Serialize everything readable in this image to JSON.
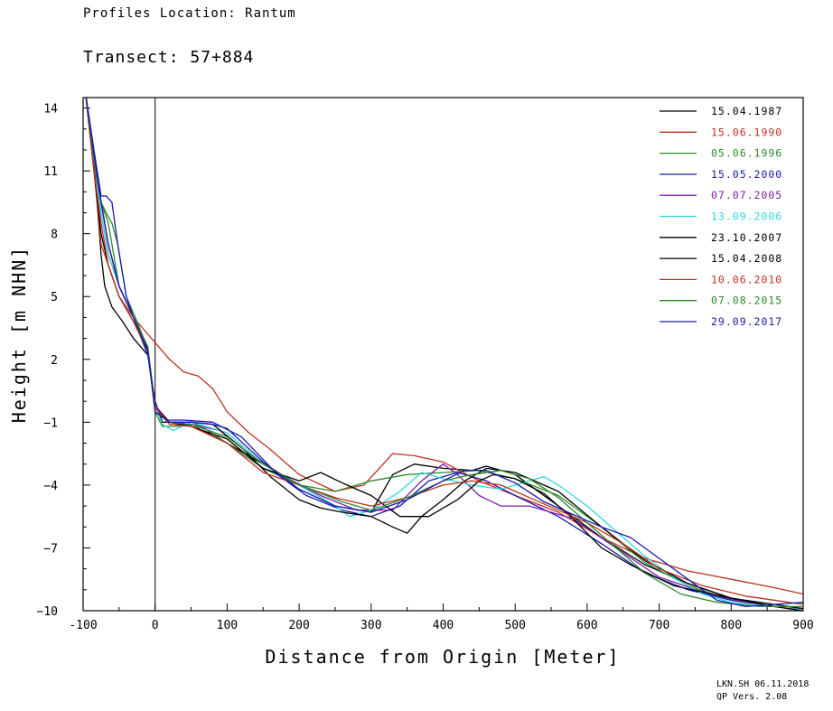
{
  "header": {
    "location": "Profiles Location: Rantum",
    "transect": "Transect: 57+884"
  },
  "footer": {
    "line1": "LKN.SH 06.11.2018",
    "line2": "QP Vers. 2.08"
  },
  "chart_data": {
    "type": "line",
    "xlabel": "Distance from Origin [Meter]",
    "ylabel": "Height [m NHN]",
    "xlim": [
      -100,
      900
    ],
    "ylim": [
      -10,
      14.5
    ],
    "xticks": [
      -100,
      0,
      100,
      200,
      300,
      400,
      500,
      600,
      700,
      800,
      900
    ],
    "yticks": [
      -10,
      -7,
      -4,
      -1,
      2,
      5,
      8,
      11,
      14
    ],
    "legend_position": "top-right",
    "grid": false,
    "series": [
      {
        "name": "15.04.1987",
        "color": "#000000",
        "x": [
          -97,
          -85,
          -75,
          -70,
          -60,
          -45,
          -30,
          -10,
          0,
          10,
          30,
          60,
          100,
          150,
          200,
          250,
          300,
          330,
          360,
          400,
          440,
          460,
          500,
          560,
          620,
          680,
          740,
          800,
          860,
          900
        ],
        "y": [
          14.8,
          11.5,
          7,
          5.5,
          4.5,
          3.8,
          3,
          2.2,
          0,
          -1,
          -1,
          -1.3,
          -2,
          -3,
          -4,
          -5,
          -5.3,
          -3.5,
          -3,
          -3.2,
          -3.3,
          -3.1,
          -3.5,
          -5,
          -6.5,
          -7.8,
          -8.7,
          -9.4,
          -9.8,
          -9.9
        ]
      },
      {
        "name": "15.06.1990",
        "color": "#c03020",
        "x": [
          -97,
          -85,
          -75,
          -65,
          -50,
          -30,
          -10,
          0,
          20,
          40,
          60,
          80,
          100,
          130,
          160,
          200,
          250,
          290,
          330,
          360,
          400,
          450,
          500,
          560,
          620,
          680,
          740,
          800,
          860,
          900
        ],
        "y": [
          14.8,
          11,
          7.5,
          6.5,
          5,
          4,
          3.2,
          2.8,
          2,
          1.4,
          1.2,
          0.6,
          -0.5,
          -1.5,
          -2.3,
          -3.5,
          -4.3,
          -4,
          -2.5,
          -2.6,
          -2.9,
          -3.8,
          -4.5,
          -5.3,
          -6.5,
          -7.5,
          -8.1,
          -8.5,
          -8.9,
          -9.2
        ]
      },
      {
        "name": "05.06.1996",
        "color": "#2a8a2a",
        "x": [
          -97,
          -85,
          -75,
          -68,
          -60,
          -52,
          -40,
          -25,
          -10,
          0,
          10,
          30,
          60,
          100,
          150,
          200,
          250,
          300,
          350,
          400,
          450,
          500,
          560,
          620,
          680,
          740,
          800,
          860,
          900
        ],
        "y": [
          14.8,
          11.5,
          9.5,
          9,
          8.5,
          7.5,
          5,
          3.8,
          2.5,
          -0.5,
          -1.2,
          -1.2,
          -1.1,
          -2,
          -3.2,
          -4,
          -4.3,
          -3.8,
          -3.5,
          -3.4,
          -3.3,
          -3.7,
          -4.5,
          -6,
          -7.7,
          -8.8,
          -9.5,
          -9.8,
          -9.9
        ]
      },
      {
        "name": "15.05.2000",
        "color": "#1a1ab0",
        "x": [
          -97,
          -85,
          -75,
          -68,
          -60,
          -52,
          -40,
          -25,
          -10,
          0,
          15,
          40,
          80,
          120,
          170,
          210,
          260,
          300,
          340,
          380,
          420,
          460,
          500,
          560,
          620,
          680,
          740,
          800,
          860,
          900
        ],
        "y": [
          14.8,
          12,
          9.8,
          9.8,
          9.5,
          7.5,
          5,
          3.5,
          2.2,
          -0.3,
          -0.9,
          -0.9,
          -1,
          -1.7,
          -3.5,
          -4.5,
          -5.2,
          -5.5,
          -5,
          -3.8,
          -3.4,
          -3.8,
          -4.5,
          -5.5,
          -6.8,
          -8.2,
          -9,
          -9.5,
          -9.8,
          -9.9
        ]
      },
      {
        "name": "07.07.2005",
        "color": "#8020b0",
        "x": [
          -97,
          -85,
          -75,
          -65,
          -50,
          -30,
          -10,
          0,
          20,
          50,
          90,
          130,
          180,
          230,
          280,
          330,
          370,
          400,
          420,
          450,
          480,
          520,
          580,
          640,
          700,
          760,
          820,
          880,
          900
        ],
        "y": [
          14.8,
          11.5,
          9,
          7,
          5.5,
          4,
          2.5,
          -0.2,
          -1,
          -1.1,
          -1.4,
          -2.5,
          -3.6,
          -4.5,
          -5.2,
          -5.2,
          -3.8,
          -3,
          -3.5,
          -4.5,
          -5,
          -5,
          -5.6,
          -7,
          -8.4,
          -9.1,
          -9.6,
          -9.9,
          -10
        ]
      },
      {
        "name": "13.09.2006",
        "color": "#30d8e0",
        "x": [
          -97,
          -85,
          -75,
          -65,
          -50,
          -30,
          -10,
          0,
          10,
          25,
          50,
          100,
          150,
          200,
          250,
          270,
          300,
          340,
          370,
          400,
          440,
          480,
          520,
          540,
          560,
          600,
          640,
          680,
          720,
          760,
          800,
          860,
          900
        ],
        "y": [
          14.8,
          11.5,
          9,
          7,
          5.5,
          4,
          2.5,
          -0.2,
          -1.1,
          -1.4,
          -1,
          -1.5,
          -3,
          -4,
          -5,
          -5.5,
          -5.2,
          -4.3,
          -3.4,
          -3.7,
          -4,
          -4.2,
          -3.8,
          -3.6,
          -4,
          -5,
          -6.2,
          -7.4,
          -8.4,
          -9.2,
          -9.6,
          -9.8,
          -9.9
        ]
      },
      {
        "name": "23.10.2007",
        "color": "#000000",
        "x": [
          -97,
          -85,
          -75,
          -65,
          -50,
          -30,
          -10,
          0,
          20,
          50,
          80,
          120,
          160,
          200,
          230,
          260,
          300,
          330,
          350,
          370,
          400,
          430,
          460,
          500,
          560,
          620,
          680,
          740,
          800,
          860,
          900
        ],
        "y": [
          14.8,
          11.5,
          9.5,
          7.5,
          5.5,
          4,
          2.5,
          -0.3,
          -1,
          -1,
          -1.1,
          -2.2,
          -3.6,
          -4.7,
          -5.1,
          -5.3,
          -5.5,
          -6,
          -6.3,
          -5.5,
          -4.7,
          -3.8,
          -3.2,
          -3.4,
          -4.3,
          -6,
          -7.6,
          -8.7,
          -9.4,
          -9.8,
          -10
        ]
      },
      {
        "name": "15.04.2008",
        "color": "#000000",
        "x": [
          -97,
          -85,
          -75,
          -65,
          -50,
          -30,
          -10,
          0,
          20,
          50,
          100,
          150,
          200,
          230,
          260,
          300,
          340,
          380,
          420,
          450,
          470,
          500,
          540,
          580,
          620,
          660,
          720,
          800,
          860,
          900
        ],
        "y": [
          14.8,
          11,
          8,
          6.5,
          5,
          3.8,
          2.4,
          -0.5,
          -1,
          -1.2,
          -1.8,
          -3.2,
          -3.8,
          -3.4,
          -3.9,
          -4.5,
          -5.5,
          -5.5,
          -4.7,
          -3.8,
          -3.5,
          -3.7,
          -4.4,
          -5.6,
          -7,
          -7.8,
          -8.8,
          -9.4,
          -9.7,
          -9.9
        ]
      },
      {
        "name": "10.06.2010",
        "color": "#c03020",
        "x": [
          -97,
          -85,
          -75,
          -65,
          -50,
          -30,
          -10,
          0,
          20,
          50,
          100,
          150,
          200,
          250,
          300,
          350,
          400,
          440,
          480,
          520,
          560,
          600,
          650,
          700,
          760,
          820,
          880,
          900
        ],
        "y": [
          14.8,
          11,
          8.5,
          6.5,
          5,
          3.8,
          2.4,
          -0.3,
          -1.1,
          -1.2,
          -2,
          -3.4,
          -4,
          -4.6,
          -5,
          -4.6,
          -4,
          -3.8,
          -4,
          -4.6,
          -5.2,
          -5.8,
          -6.8,
          -8,
          -8.8,
          -9.3,
          -9.6,
          -9.7
        ]
      },
      {
        "name": "07.08.2015",
        "color": "#2a8a2a",
        "x": [
          -97,
          -85,
          -75,
          -65,
          -50,
          -30,
          -10,
          0,
          20,
          50,
          100,
          150,
          200,
          260,
          300,
          350,
          400,
          440,
          480,
          520,
          560,
          600,
          640,
          680,
          730,
          780,
          840,
          900
        ],
        "y": [
          14.8,
          11.5,
          9.5,
          8.5,
          5.5,
          4,
          2.6,
          -0.5,
          -1,
          -1.1,
          -1.7,
          -3,
          -4,
          -4.8,
          -5.2,
          -4.6,
          -3.8,
          -3.5,
          -3.3,
          -3.7,
          -4.6,
          -5.8,
          -7,
          -8.2,
          -9.2,
          -9.6,
          -9.8,
          -9.8
        ]
      },
      {
        "name": "29.09.2017",
        "color": "#1a1ab0",
        "x": [
          -97,
          -85,
          -75,
          -65,
          -50,
          -30,
          -10,
          0,
          20,
          50,
          80,
          100,
          150,
          200,
          250,
          300,
          350,
          400,
          430,
          460,
          500,
          540,
          580,
          620,
          660,
          700,
          740,
          780,
          820,
          860,
          900
        ],
        "y": [
          14.8,
          11.8,
          9.5,
          7.5,
          5.5,
          4,
          2.4,
          -0.5,
          -1,
          -1,
          -1.1,
          -1.3,
          -2.9,
          -4.2,
          -5,
          -5.3,
          -4.7,
          -3.8,
          -3.3,
          -3.3,
          -3.9,
          -4.8,
          -5.4,
          -6,
          -6.5,
          -7.5,
          -8.5,
          -9.5,
          -9.8,
          -9.7,
          -9.6
        ]
      }
    ]
  }
}
